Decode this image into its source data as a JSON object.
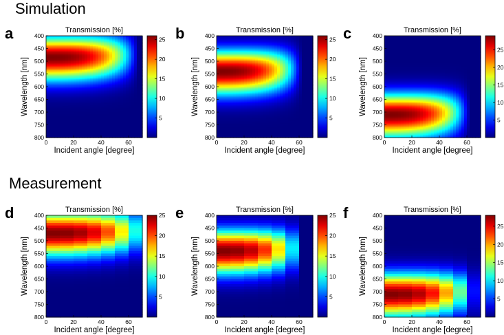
{
  "sections": {
    "simulation": "Simulation",
    "measurement": "Measurement"
  },
  "chart_data": [
    {
      "type": "heatmap",
      "label": "a",
      "title": "Transmission [%]",
      "xlabel": "Incident angle [degree]",
      "ylabel": "Wavelength [nm]",
      "xlim": [
        0,
        70
      ],
      "ylim": [
        400,
        800
      ],
      "xticks": [
        0,
        20,
        40,
        60
      ],
      "yticks": [
        400,
        450,
        500,
        550,
        600,
        650,
        700,
        750,
        800
      ],
      "colorbar_range": [
        0,
        26
      ],
      "colorbar_ticks": [
        5,
        10,
        15,
        20,
        25
      ],
      "peak_wavelength": 485,
      "peak_value": 26,
      "rolloff_angle": 65,
      "measured": false
    },
    {
      "type": "heatmap",
      "label": "b",
      "title": "Transmission [%]",
      "xlabel": "Incident angle [degree]",
      "ylabel": "Wavelength [nm]",
      "xlim": [
        0,
        70
      ],
      "ylim": [
        400,
        800
      ],
      "xticks": [
        0,
        20,
        40,
        60
      ],
      "yticks": [
        400,
        450,
        500,
        550,
        600,
        650,
        700,
        750,
        800
      ],
      "colorbar_range": [
        0,
        26
      ],
      "colorbar_ticks": [
        5,
        10,
        15,
        20,
        25
      ],
      "peak_wavelength": 540,
      "peak_value": 26,
      "rolloff_angle": 60,
      "measured": false
    },
    {
      "type": "heatmap",
      "label": "c",
      "title": "Transmission [%]",
      "xlabel": "Incident angle [degree]",
      "ylabel": "Wavelength [nm]",
      "xlim": [
        0,
        70
      ],
      "ylim": [
        400,
        800
      ],
      "xticks": [
        0,
        20,
        40,
        60
      ],
      "yticks": [
        400,
        450,
        500,
        550,
        600,
        650,
        700,
        750,
        800
      ],
      "colorbar_range": [
        0,
        29
      ],
      "colorbar_ticks": [
        5,
        10,
        15,
        20,
        25
      ],
      "peak_wavelength": 710,
      "peak_value": 29,
      "rolloff_angle": 60,
      "measured": false
    },
    {
      "type": "heatmap",
      "label": "d",
      "title": "Transmission [%]",
      "xlabel": "Incident angle [degree]",
      "ylabel": "Wavelength [nm]",
      "xlim": [
        0,
        70
      ],
      "ylim": [
        400,
        800
      ],
      "xticks": [
        0,
        20,
        40,
        60
      ],
      "yticks": [
        400,
        450,
        500,
        550,
        600,
        650,
        700,
        750,
        800
      ],
      "colorbar_range": [
        0,
        25
      ],
      "colorbar_ticks": [
        5,
        10,
        15,
        20,
        25
      ],
      "peak_wavelength": 470,
      "peak_value": 25,
      "rolloff_angle": 70,
      "measured": true
    },
    {
      "type": "heatmap",
      "label": "e",
      "title": "Transmission [%]",
      "xlabel": "Incident angle [degree]",
      "ylabel": "Wavelength [nm]",
      "xlim": [
        0,
        70
      ],
      "ylim": [
        400,
        800
      ],
      "xticks": [
        0,
        20,
        40,
        60
      ],
      "yticks": [
        400,
        450,
        500,
        550,
        600,
        650,
        700,
        750,
        800
      ],
      "colorbar_range": [
        0,
        25
      ],
      "colorbar_ticks": [
        5,
        10,
        15,
        20,
        25
      ],
      "peak_wavelength": 540,
      "peak_value": 25,
      "rolloff_angle": 58,
      "measured": true
    },
    {
      "type": "heatmap",
      "label": "f",
      "title": "Transmission [%]",
      "xlabel": "Incident angle [degree]",
      "ylabel": "Wavelength [nm]",
      "xlim": [
        0,
        70
      ],
      "ylim": [
        400,
        800
      ],
      "xticks": [
        0,
        20,
        40,
        60
      ],
      "yticks": [
        400,
        450,
        500,
        550,
        600,
        650,
        700,
        750,
        800
      ],
      "colorbar_range": [
        0,
        28
      ],
      "colorbar_ticks": [
        5,
        10,
        15,
        20,
        25
      ],
      "peak_wavelength": 710,
      "peak_value": 28,
      "rolloff_angle": 62,
      "measured": true
    }
  ]
}
